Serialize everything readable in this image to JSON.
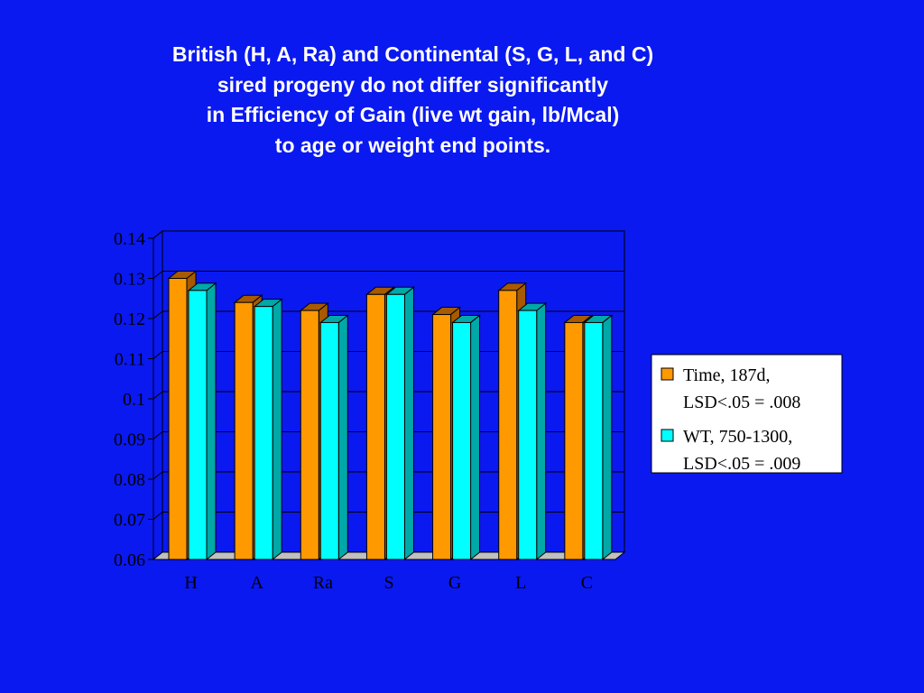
{
  "title_lines": [
    "British (H, A, Ra) and Continental (S, G, L, and C)",
    "sired progeny do not differ significantly",
    "in Efficiency of Gain (live wt gain, lb/Mcal)",
    "to age or weight end points."
  ],
  "chart_data": {
    "type": "bar",
    "style": "3d-clustered",
    "categories": [
      "H",
      "A",
      "Ra",
      "S",
      "G",
      "L",
      "C"
    ],
    "series": [
      {
        "name": "Time, 187d, LSD<.05 = .008",
        "name_lines": [
          "Time, 187d,",
          "LSD<.05 = .008"
        ],
        "color": "#FF9900",
        "side_color": "#A85A00",
        "values": [
          0.13,
          0.124,
          0.122,
          0.126,
          0.121,
          0.127,
          0.119
        ]
      },
      {
        "name": "WT, 750-1300, LSD<.05 = .009",
        "name_lines": [
          "WT, 750-1300,",
          "LSD<.05 = .009"
        ],
        "color": "#00FFFF",
        "side_color": "#00A8A8",
        "values": [
          0.127,
          0.123,
          0.119,
          0.126,
          0.119,
          0.122,
          0.119
        ]
      }
    ],
    "ylim": [
      0.06,
      0.14
    ],
    "yticks": [
      "0.06",
      "0.07",
      "0.08",
      "0.09",
      "0.1",
      "0.11",
      "0.12",
      "0.13",
      "0.14"
    ],
    "grid": true,
    "legend_position": "right",
    "colors": {
      "background": "#0A19F0",
      "gridline": "#000000",
      "floor": "#C0C0C0"
    }
  }
}
